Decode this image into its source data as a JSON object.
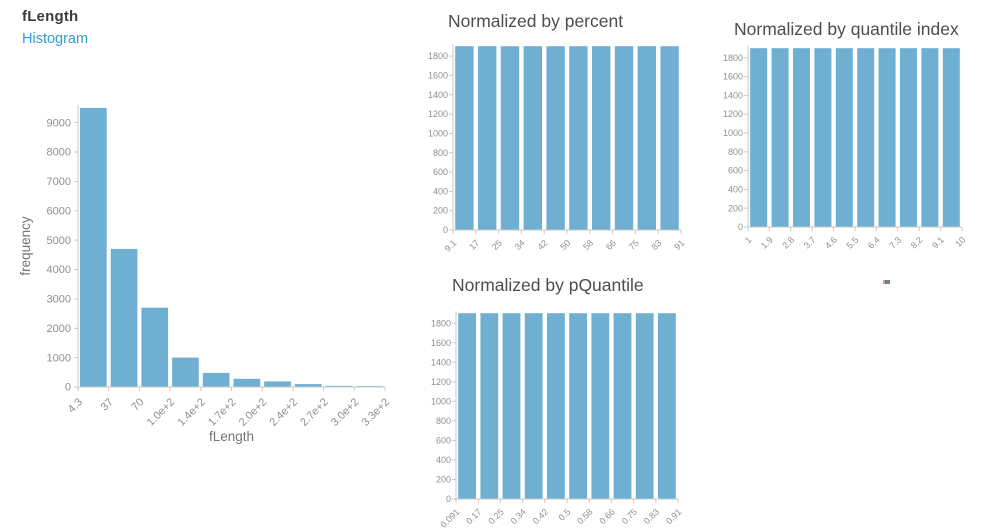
{
  "colors": {
    "bar": "#6fafd2",
    "axis_line": "#c9c9c9",
    "tick_label": "#8f8f8f",
    "axis_title": "#757575",
    "main_title": "#3c3c3c",
    "subtitle_link": "#2d9dd5",
    "chart_title": "#4d4d4d"
  },
  "chart_data": [
    {
      "id": "flength_histogram",
      "type": "bar",
      "title": "fLength",
      "subtitle": "Histogram",
      "xlabel": "fLength",
      "ylabel": "frequency",
      "bin_edge_labels": [
        "4.3",
        "37",
        "70",
        "1.0e+2",
        "1.4e+2",
        "1.7e+2",
        "2.0e+2",
        "2.4e+2",
        "2.7e+2",
        "3.0e+2",
        "3.3e+2"
      ],
      "values": [
        9500,
        4700,
        2700,
        1000,
        480,
        280,
        190,
        100,
        40,
        30
      ],
      "y_tick_labels": [
        "0",
        "1000",
        "2000",
        "3000",
        "4000",
        "5000",
        "6000",
        "7000",
        "8000",
        "9000"
      ],
      "ylim": [
        0,
        9600
      ],
      "grid": false,
      "legend": null
    },
    {
      "id": "normalized_by_percent",
      "type": "bar",
      "title": "Normalized by percent",
      "xlabel": "",
      "ylabel": "",
      "bin_edge_labels": [
        "9.1",
        "17",
        "25",
        "34",
        "42",
        "50",
        "58",
        "66",
        "75",
        "83",
        "91"
      ],
      "values": [
        1902,
        1902,
        1902,
        1902,
        1902,
        1902,
        1902,
        1902,
        1902,
        1902
      ],
      "y_tick_labels": [
        "0",
        "200",
        "400",
        "600",
        "800",
        "1000",
        "1200",
        "1400",
        "1600",
        "1800"
      ],
      "ylim": [
        0,
        1925
      ],
      "grid": false,
      "legend": null
    },
    {
      "id": "normalized_by_quantile_index",
      "type": "bar",
      "title": "Normalized by quantile index",
      "xlabel": "",
      "ylabel": "",
      "bin_edge_labels": [
        "1",
        "1.9",
        "2.8",
        "3.7",
        "4.6",
        "5.5",
        "6.4",
        "7.3",
        "8.2",
        "9.1",
        "10"
      ],
      "values": [
        1902,
        1902,
        1902,
        1902,
        1902,
        1902,
        1902,
        1902,
        1902,
        1902
      ],
      "y_tick_labels": [
        "0",
        "200",
        "400",
        "600",
        "800",
        "1000",
        "1200",
        "1400",
        "1600",
        "1800"
      ],
      "ylim": [
        0,
        1925
      ],
      "grid": false,
      "legend": null
    },
    {
      "id": "normalized_by_pquantile",
      "type": "bar",
      "title": "Normalized by pQuantile",
      "xlabel": "",
      "ylabel": "",
      "bin_edge_labels": [
        "0.091",
        "0.17",
        "0.25",
        "0.34",
        "0.42",
        "0.5",
        "0.58",
        "0.66",
        "0.75",
        "0.83",
        "0.91"
      ],
      "values": [
        1902,
        1902,
        1902,
        1902,
        1902,
        1902,
        1902,
        1902,
        1902,
        1902
      ],
      "y_tick_labels": [
        "0",
        "200",
        "400",
        "600",
        "800",
        "1000",
        "1200",
        "1400",
        "1600",
        "1800"
      ],
      "ylim": [
        0,
        1925
      ],
      "grid": false,
      "legend": null
    }
  ]
}
